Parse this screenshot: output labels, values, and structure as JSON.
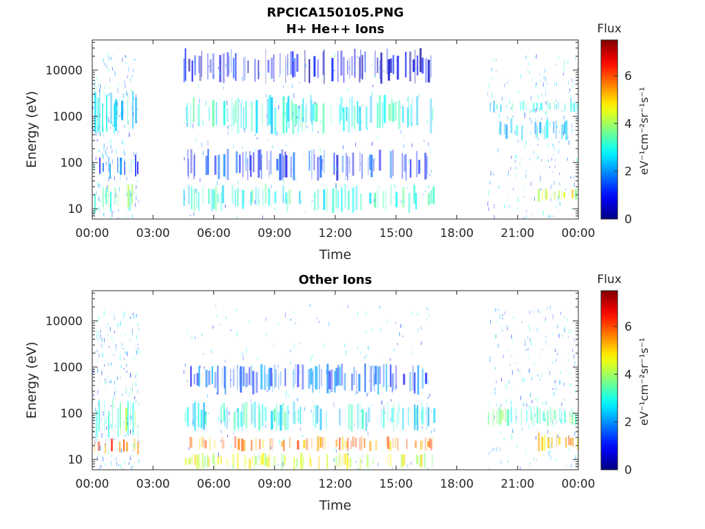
{
  "figure_title": "RPCICA150105.PNG",
  "chart_data": [
    {
      "type": "heatmap",
      "title": "H+ He++ Ions",
      "xlabel": "Time",
      "ylabel": "Energy (eV)",
      "x_ticks": [
        "00:00",
        "03:00",
        "06:00",
        "09:00",
        "12:00",
        "15:00",
        "18:00",
        "21:00",
        "00:00"
      ],
      "x_range_hours": [
        0,
        24
      ],
      "y_scale": "log",
      "y_ticks": [
        10,
        100,
        1000,
        10000
      ],
      "y_tick_labels": [
        "10",
        "100",
        "1000",
        "10000"
      ],
      "y_range_ev": [
        6,
        45000
      ],
      "colorbar": {
        "label": "Flux",
        "unit": "eV⁻¹cm⁻²sr⁻¹s⁻¹",
        "range": [
          0,
          7.5
        ],
        "ticks": [
          0,
          2,
          4,
          6
        ],
        "colormap": "jet"
      },
      "data_gaps_hours": [
        [
          2.3,
          4.5
        ],
        [
          16.9,
          19.5
        ]
      ],
      "bands": [
        {
          "t": [
            0.0,
            2.3
          ],
          "e": [
            400,
            4000
          ],
          "flux": 2.8
        },
        {
          "t": [
            0.0,
            2.3
          ],
          "e": [
            40,
            150
          ],
          "flux": 1.5
        },
        {
          "t": [
            0.0,
            2.3
          ],
          "e": [
            8,
            35
          ],
          "flux": 3.5
        },
        {
          "t": [
            4.5,
            16.9
          ],
          "e": [
            400,
            3000
          ],
          "flux": 2.9
        },
        {
          "t": [
            4.5,
            16.9
          ],
          "e": [
            8,
            35
          ],
          "flux": 3.0
        },
        {
          "t": [
            4.5,
            16.9
          ],
          "e": [
            40,
            200
          ],
          "flux": 1.2
        },
        {
          "t": [
            4.5,
            16.9
          ],
          "e": [
            5000,
            30000
          ],
          "flux": 0.8
        },
        {
          "t": [
            19.5,
            24.0
          ],
          "e": [
            1200,
            2200
          ],
          "flux": 2.9
        },
        {
          "t": [
            20.0,
            24.0
          ],
          "e": [
            300,
            900
          ],
          "flux": 2.4
        },
        {
          "t": [
            22.0,
            24.0
          ],
          "e": [
            14,
            28
          ],
          "flux": 4.4
        }
      ]
    },
    {
      "type": "heatmap",
      "title": "Other Ions",
      "xlabel": "Time",
      "ylabel": "Energy (eV)",
      "x_ticks": [
        "00:00",
        "03:00",
        "06:00",
        "09:00",
        "12:00",
        "15:00",
        "18:00",
        "21:00",
        "00:00"
      ],
      "x_range_hours": [
        0,
        24
      ],
      "y_scale": "log",
      "y_ticks": [
        10,
        100,
        1000,
        10000
      ],
      "y_tick_labels": [
        "10",
        "100",
        "1000",
        "10000"
      ],
      "y_range_ev": [
        6,
        45000
      ],
      "colorbar": {
        "label": "Flux",
        "unit": "eV⁻¹cm⁻²sr⁻¹s⁻¹",
        "range": [
          0,
          7.5
        ],
        "ticks": [
          0,
          2,
          4,
          6
        ],
        "colormap": "jet"
      },
      "data_gaps_hours": [
        [
          2.3,
          4.5
        ],
        [
          16.9,
          19.5
        ]
      ],
      "bands": [
        {
          "t": [
            0.0,
            2.3
          ],
          "e": [
            12,
            30
          ],
          "flux": 5.8
        },
        {
          "t": [
            0.0,
            2.3
          ],
          "e": [
            30,
            200
          ],
          "flux": 3.5
        },
        {
          "t": [
            4.5,
            16.9
          ],
          "e": [
            15,
            32
          ],
          "flux": 5.6
        },
        {
          "t": [
            4.5,
            16.9
          ],
          "e": [
            40,
            180
          ],
          "flux": 2.8
        },
        {
          "t": [
            4.5,
            16.9
          ],
          "e": [
            6,
            14
          ],
          "flux": 4.4
        },
        {
          "t": [
            4.5,
            16.9
          ],
          "e": [
            250,
            1200
          ],
          "flux": 1.6
        },
        {
          "t": [
            19.5,
            24.0
          ],
          "e": [
            50,
            150
          ],
          "flux": 3.4
        },
        {
          "t": [
            22.0,
            24.0
          ],
          "e": [
            15,
            40
          ],
          "flux": 5.3
        }
      ]
    }
  ]
}
